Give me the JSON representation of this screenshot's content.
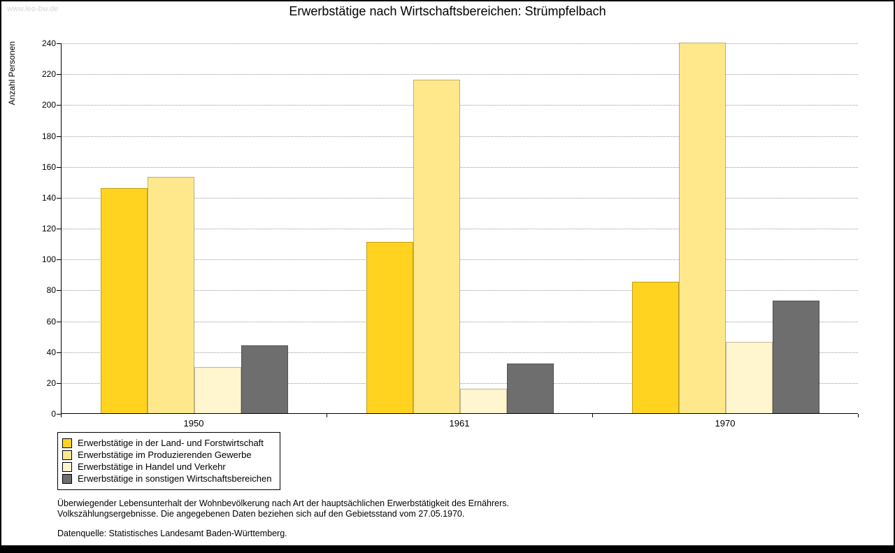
{
  "watermark": "www.leo-bw.de",
  "title": "Erwerbstätige nach Wirtschaftsbereichen: Strümpfelbach",
  "chart_data": {
    "type": "bar",
    "title": "Erwerbstätige nach Wirtschaftsbereichen: Strümpfelbach",
    "categories": [
      "1950",
      "1961",
      "1970"
    ],
    "series": [
      {
        "name": "Erwerbstätige in der Land- und Forstwirtschaft",
        "color": "#FFD320",
        "values": [
          146,
          111,
          85
        ]
      },
      {
        "name": "Erwerbstätige im Produzierenden Gewerbe",
        "color": "#FFE88C",
        "values": [
          153,
          216,
          240
        ]
      },
      {
        "name": "Erwerbstätige in Handel und Verkehr",
        "color": "#FFF5CE",
        "values": [
          30,
          16,
          46
        ]
      },
      {
        "name": "Erwerbstätige in sonstigen Wirtschaftsbereichen",
        "color": "#6E6E6E",
        "values": [
          44,
          32,
          73
        ]
      }
    ],
    "xlabel": "",
    "ylabel": "Anzahl Personen",
    "ylim": [
      0,
      240
    ],
    "ytick_step": 20,
    "grid": "horizontal dotted",
    "legend_position": "bottom-left"
  },
  "footnotes": {
    "line1": "Überwiegender Lebensunterhalt der Wohnbevölkerung nach Art der hauptsächlichen Erwerbstätigkeit des Ernährers.",
    "line2": "Volkszählungsergebnisse. Die angegebenen Daten beziehen sich auf den Gebietsstand vom 27.05.1970.",
    "source": "Datenquelle: Statistisches Landesamt Baden-Württemberg."
  }
}
